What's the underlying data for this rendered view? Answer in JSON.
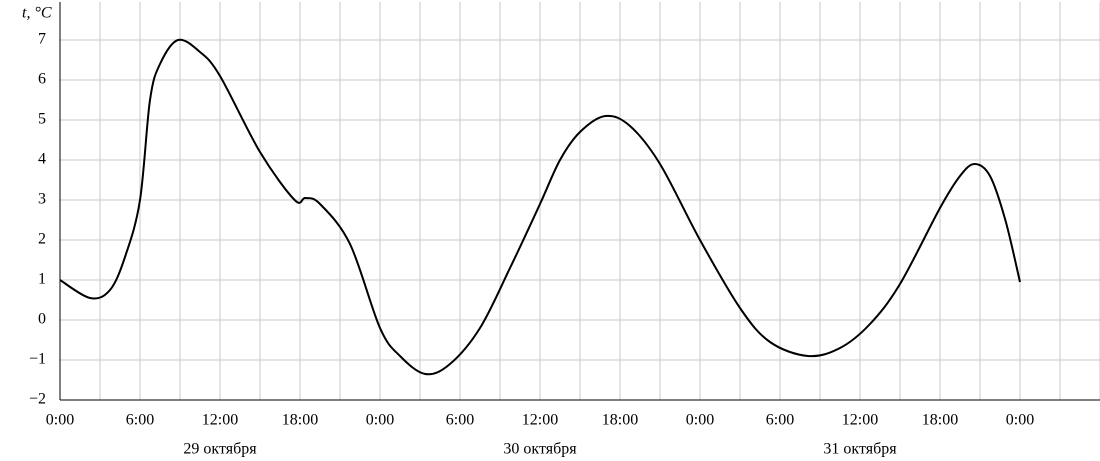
{
  "chart_data": {
    "type": "line",
    "y_label": "t, °C",
    "xlim": [
      0,
      78
    ],
    "ylim": [
      -2,
      7.95
    ],
    "xticks": [
      {
        "value": 0,
        "label": "0:00"
      },
      {
        "value": 6,
        "label": "6:00"
      },
      {
        "value": 12,
        "label": "12:00"
      },
      {
        "value": 18,
        "label": "18:00"
      },
      {
        "value": 24,
        "label": "0:00"
      },
      {
        "value": 30,
        "label": "6:00"
      },
      {
        "value": 36,
        "label": "12:00"
      },
      {
        "value": 42,
        "label": "18:00"
      },
      {
        "value": 48,
        "label": "0:00"
      },
      {
        "value": 54,
        "label": "6:00"
      },
      {
        "value": 60,
        "label": "12:00"
      },
      {
        "value": 66,
        "label": "18:00"
      },
      {
        "value": 72,
        "label": "0:00"
      }
    ],
    "xgrid_minor": [
      3,
      9,
      15,
      21,
      27,
      33,
      39,
      45,
      51,
      57,
      63,
      69,
      75,
      78
    ],
    "yticks": [
      {
        "value": -2,
        "label": "−2"
      },
      {
        "value": -1,
        "label": "−1"
      },
      0,
      1,
      2,
      3,
      4,
      5,
      6,
      7
    ],
    "grid": true,
    "day_labels": [
      {
        "x": 12,
        "label": "29 октября"
      },
      {
        "x": 36,
        "label": "30 октября"
      },
      {
        "x": 60,
        "label": "31 октября"
      }
    ],
    "series": [
      {
        "color": "#000000",
        "x": [
          0,
          2.25,
          3.75,
          4.9,
          6,
          6.75,
          7.5,
          8.85,
          10.5,
          12,
          15,
          17.6,
          18.4,
          19.5,
          21.75,
          24,
          25.5,
          27.4,
          29.25,
          31.5,
          33.75,
          36,
          37.5,
          39,
          40.9,
          42.75,
          45,
          48,
          51,
          53.25,
          56.1,
          58.5,
          60.75,
          63,
          66,
          67.5,
          68.6,
          69.75,
          70.9,
          72
        ],
        "values": [
          1,
          0.55,
          0.75,
          1.6,
          3.0,
          5.5,
          6.4,
          7.0,
          6.7,
          6.1,
          4.2,
          3.0,
          3.05,
          2.9,
          1.9,
          -0.2,
          -0.9,
          -1.35,
          -1.1,
          -0.2,
          1.3,
          2.9,
          4.0,
          4.7,
          5.1,
          4.85,
          3.9,
          2.0,
          0.3,
          -0.55,
          -0.9,
          -0.7,
          -0.1,
          0.9,
          2.8,
          3.6,
          3.9,
          3.6,
          2.5,
          0.95
        ]
      }
    ]
  }
}
